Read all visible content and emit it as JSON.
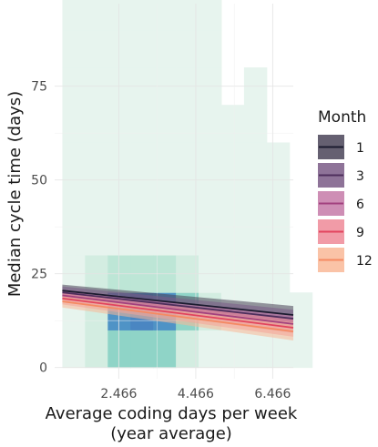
{
  "chart_data": {
    "type": "line",
    "title": "",
    "xlabel_line1": "Average coding days per week",
    "xlabel_line2": "(year average)",
    "ylabel": "Median cycle time (days)",
    "xlim": [
      0.8,
      7.0
    ],
    "ylim": [
      -3,
      97
    ],
    "x_ticks": [
      2.466,
      4.466,
      6.466
    ],
    "x_tick_labels": [
      "2.466",
      "4.466",
      "6.466"
    ],
    "y_ticks": [
      0,
      25,
      50,
      75
    ],
    "y_tick_labels": [
      "0",
      "25",
      "50",
      "75"
    ],
    "grid": true,
    "legend": {
      "title": "Month",
      "position": "right",
      "entries": [
        "1",
        "3",
        "6",
        "9",
        "12"
      ]
    },
    "series": [
      {
        "name": "1",
        "color": "#1b1b2f",
        "band_color": "#4a4458",
        "x": [
          1.0,
          7.0
        ],
        "y": [
          20.5,
          14.0
        ],
        "ci": [
          1.6,
          2.4
        ]
      },
      {
        "name": "3",
        "color": "#4e2f5d",
        "band_color": "#7a5b86",
        "x": [
          1.0,
          7.0
        ],
        "y": [
          20.0,
          13.0
        ],
        "ci": [
          1.6,
          2.4
        ]
      },
      {
        "name": "6",
        "color": "#a2417f",
        "band_color": "#c57aa8",
        "x": [
          1.0,
          7.0
        ],
        "y": [
          19.2,
          11.6
        ],
        "ci": [
          1.6,
          2.4
        ]
      },
      {
        "name": "9",
        "color": "#e2445e",
        "band_color": "#ef8a98",
        "x": [
          1.0,
          7.0
        ],
        "y": [
          18.4,
          10.6
        ],
        "ci": [
          1.6,
          2.4
        ]
      },
      {
        "name": "12",
        "color": "#f58a62",
        "band_color": "#f9b898",
        "x": [
          1.0,
          7.0
        ],
        "y": [
          17.6,
          9.6
        ],
        "ci": [
          1.6,
          2.4
        ]
      }
    ],
    "heatmap": {
      "x_bin_width": 0.59,
      "y_bin_height": 10,
      "cells": [
        [
          1.0,
          0,
          1
        ],
        [
          1.0,
          10,
          1
        ],
        [
          1.0,
          20,
          1
        ],
        [
          1.0,
          30,
          1
        ],
        [
          1.0,
          40,
          1
        ],
        [
          1.0,
          50,
          1
        ],
        [
          1.0,
          60,
          1
        ],
        [
          1.0,
          70,
          1
        ],
        [
          1.0,
          80,
          1
        ],
        [
          1.0,
          90,
          1
        ],
        [
          1.59,
          0,
          2
        ],
        [
          1.59,
          10,
          2
        ],
        [
          1.59,
          20,
          2
        ],
        [
          1.59,
          30,
          1
        ],
        [
          1.59,
          40,
          1
        ],
        [
          1.59,
          50,
          1
        ],
        [
          1.59,
          60,
          1
        ],
        [
          1.59,
          70,
          1
        ],
        [
          1.59,
          80,
          1
        ],
        [
          1.59,
          90,
          1
        ],
        [
          2.18,
          0,
          4
        ],
        [
          2.18,
          10,
          7
        ],
        [
          2.18,
          20,
          3
        ],
        [
          2.18,
          30,
          1
        ],
        [
          2.18,
          40,
          1
        ],
        [
          2.18,
          50,
          1
        ],
        [
          2.18,
          60,
          1
        ],
        [
          2.18,
          70,
          1
        ],
        [
          2.18,
          80,
          1
        ],
        [
          2.18,
          90,
          1
        ],
        [
          2.77,
          0,
          4
        ],
        [
          2.77,
          10,
          8
        ],
        [
          2.77,
          20,
          3
        ],
        [
          2.77,
          30,
          1
        ],
        [
          2.77,
          40,
          1
        ],
        [
          2.77,
          50,
          1
        ],
        [
          2.77,
          60,
          1
        ],
        [
          2.77,
          70,
          1
        ],
        [
          2.77,
          80,
          1
        ],
        [
          2.77,
          90,
          1
        ],
        [
          3.36,
          0,
          4
        ],
        [
          3.36,
          10,
          7
        ],
        [
          3.36,
          20,
          3
        ],
        [
          3.36,
          30,
          1
        ],
        [
          3.36,
          40,
          1
        ],
        [
          3.36,
          50,
          1
        ],
        [
          3.36,
          60,
          1
        ],
        [
          3.36,
          70,
          1
        ],
        [
          3.36,
          80,
          1
        ],
        [
          3.36,
          90,
          1
        ],
        [
          3.95,
          0,
          2
        ],
        [
          3.95,
          10,
          4
        ],
        [
          3.95,
          20,
          2
        ],
        [
          3.95,
          30,
          1
        ],
        [
          3.95,
          40,
          1
        ],
        [
          3.95,
          50,
          1
        ],
        [
          3.95,
          60,
          1
        ],
        [
          3.95,
          70,
          1
        ],
        [
          3.95,
          80,
          1
        ],
        [
          3.95,
          90,
          1
        ],
        [
          4.54,
          0,
          1
        ],
        [
          4.54,
          10,
          2
        ],
        [
          4.54,
          20,
          1
        ],
        [
          4.54,
          30,
          1
        ],
        [
          4.54,
          40,
          1
        ],
        [
          4.54,
          50,
          1
        ],
        [
          4.54,
          60,
          1
        ],
        [
          4.54,
          70,
          1
        ],
        [
          4.54,
          80,
          1
        ],
        [
          4.54,
          90,
          1
        ],
        [
          5.13,
          0,
          1
        ],
        [
          5.13,
          10,
          1
        ],
        [
          5.13,
          20,
          1
        ],
        [
          5.13,
          30,
          1
        ],
        [
          5.13,
          40,
          1
        ],
        [
          5.13,
          50,
          1
        ],
        [
          5.13,
          60,
          1
        ],
        [
          5.72,
          0,
          1
        ],
        [
          5.72,
          10,
          1
        ],
        [
          5.72,
          20,
          1
        ],
        [
          5.72,
          30,
          1
        ],
        [
          5.72,
          40,
          1
        ],
        [
          5.72,
          50,
          1
        ],
        [
          5.72,
          60,
          1
        ],
        [
          5.72,
          70,
          1
        ],
        [
          6.31,
          0,
          1
        ],
        [
          6.31,
          10,
          1
        ],
        [
          6.31,
          20,
          1
        ],
        [
          6.31,
          30,
          1
        ],
        [
          6.31,
          40,
          1
        ],
        [
          6.31,
          50,
          1
        ],
        [
          6.9,
          0,
          1
        ],
        [
          6.9,
          10,
          1
        ]
      ]
    }
  }
}
